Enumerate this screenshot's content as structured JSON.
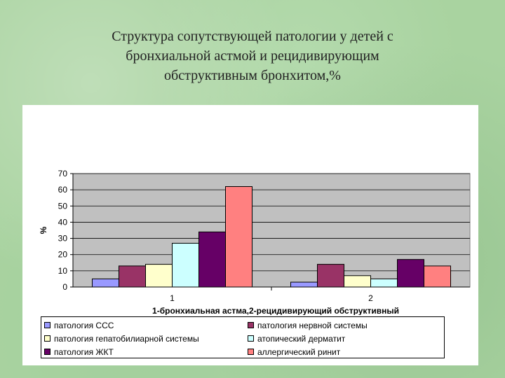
{
  "slide": {
    "title_lines": [
      "Структура сопутствующей патологии у детей с",
      "бронхиальной астмой и рецидивирующим",
      "обструктивным бронхитом,%"
    ]
  },
  "chart_data": {
    "type": "bar",
    "categories": [
      "1",
      "2"
    ],
    "xlabel": "1-бронхиальная астма,2-рецидивирующий обструктивный",
    "ylabel": "%",
    "ylim": [
      0,
      70
    ],
    "yticks": [
      0,
      10,
      20,
      30,
      40,
      50,
      60,
      70
    ],
    "grid": true,
    "plot_background": "#c0c0c0",
    "legend_position": "bottom",
    "series": [
      {
        "name": "патология ССС",
        "values": [
          5,
          3
        ],
        "color": "#9999ff"
      },
      {
        "name": "патология нервной системы",
        "values": [
          13,
          14
        ],
        "color": "#993366"
      },
      {
        "name": "патология гепатобилиарной системы",
        "values": [
          14,
          7
        ],
        "color": "#ffffcc"
      },
      {
        "name": "атопический дерматит",
        "values": [
          27,
          5
        ],
        "color": "#ccffff"
      },
      {
        "name": "патология ЖКТ",
        "values": [
          34,
          17
        ],
        "color": "#660066"
      },
      {
        "name": "аллергический ринит",
        "values": [
          62,
          13
        ],
        "color": "#ff8080"
      }
    ]
  }
}
